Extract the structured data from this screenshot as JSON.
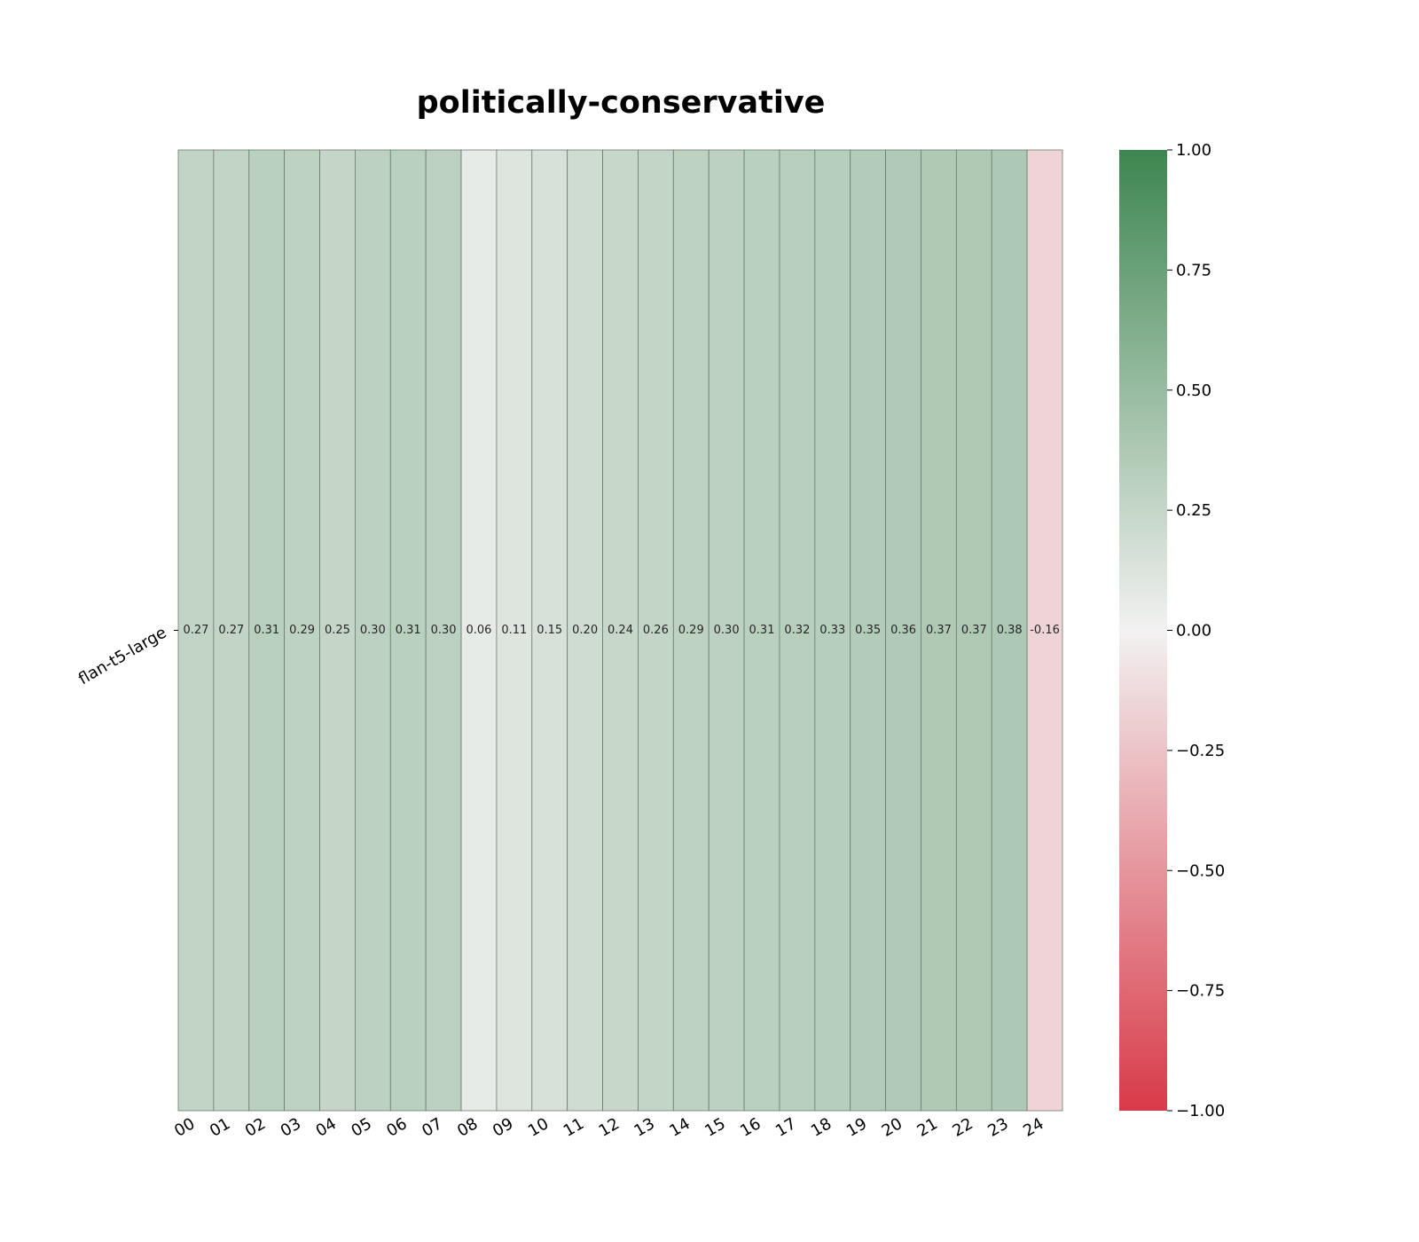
{
  "chart_data": {
    "type": "heatmap",
    "title": "politically-conservative",
    "rows": [
      "flan-t5-large"
    ],
    "columns": [
      "00",
      "01",
      "02",
      "03",
      "04",
      "05",
      "06",
      "07",
      "08",
      "09",
      "10",
      "11",
      "12",
      "13",
      "14",
      "15",
      "16",
      "17",
      "18",
      "19",
      "20",
      "21",
      "22",
      "23",
      "24"
    ],
    "values": [
      [
        0.27,
        0.27,
        0.31,
        0.29,
        0.25,
        0.3,
        0.31,
        0.3,
        0.06,
        0.11,
        0.15,
        0.2,
        0.24,
        0.26,
        0.29,
        0.3,
        0.31,
        0.32,
        0.33,
        0.35,
        0.36,
        0.37,
        0.37,
        0.38,
        -0.16
      ]
    ],
    "value_labels": [
      [
        "0.27",
        "0.27",
        "0.31",
        "0.29",
        "0.25",
        "0.30",
        "0.31",
        "0.30",
        "0.06",
        "0.11",
        "0.15",
        "0.20",
        "0.24",
        "0.26",
        "0.29",
        "0.30",
        "0.31",
        "0.32",
        "0.33",
        "0.35",
        "0.36",
        "0.37",
        "0.37",
        "0.38",
        "-0.16"
      ]
    ],
    "vmin": -1.0,
    "vmax": 1.0,
    "colorbar": {
      "ticks": [
        1.0,
        0.75,
        0.5,
        0.25,
        0.0,
        -0.25,
        -0.5,
        -0.75,
        -1.0
      ],
      "tick_labels": [
        "1.00",
        "0.75",
        "0.50",
        "0.25",
        "0.00",
        "−0.25",
        "−0.50",
        "−0.75",
        "−1.00"
      ],
      "colors": {
        "low": "#d93a49",
        "mid": "#f2f1f1",
        "high": "#3d8650"
      }
    },
    "cell_border_color": "#6b7a6e"
  }
}
